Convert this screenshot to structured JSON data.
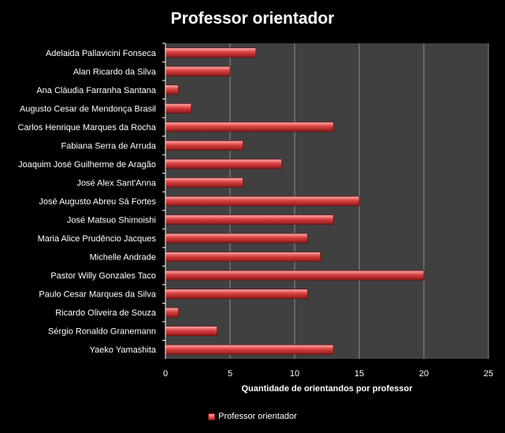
{
  "chart_data": {
    "type": "bar",
    "orientation": "horizontal",
    "title": "Professor orientador",
    "xlabel": "Quantidade de orientandos por professor",
    "ylabel": "",
    "xlim": [
      0,
      25
    ],
    "xticks": [
      0,
      5,
      10,
      15,
      20,
      25
    ],
    "grid": true,
    "legend_position": "bottom",
    "bar_color": "#d9403f",
    "background_color": "#000000",
    "plot_background_color": "#404040",
    "categories": [
      "Adelaida Pallavicini Fonseca",
      "Alan Ricardo da Silva",
      "Ana Cláudia Farranha Santana",
      "Augusto Cesar de Mendonça Brasil",
      "Carlos Henrique Marques da Rocha",
      "Fabiana Serra de Arruda",
      "Joaquim José Guilherme de Aragão",
      "José Alex Sant'Anna",
      "José Augusto Abreu Sá Fortes",
      "José Matsuo Shimoishi",
      "Maria Alice Prudêncio Jacques",
      "Michelle Andrade",
      "Pastor Willy Gonzales Taco",
      "Paulo Cesar Marques da Silva",
      "Ricardo Oliveira de Souza",
      "Sérgio Ronaldo Granemann",
      "Yaeko Yamashita"
    ],
    "series": [
      {
        "name": "Professor orientador",
        "values": [
          7,
          5,
          1,
          2,
          13,
          6,
          9,
          6,
          15,
          13,
          11,
          12,
          20,
          11,
          1,
          4,
          13
        ]
      }
    ]
  }
}
